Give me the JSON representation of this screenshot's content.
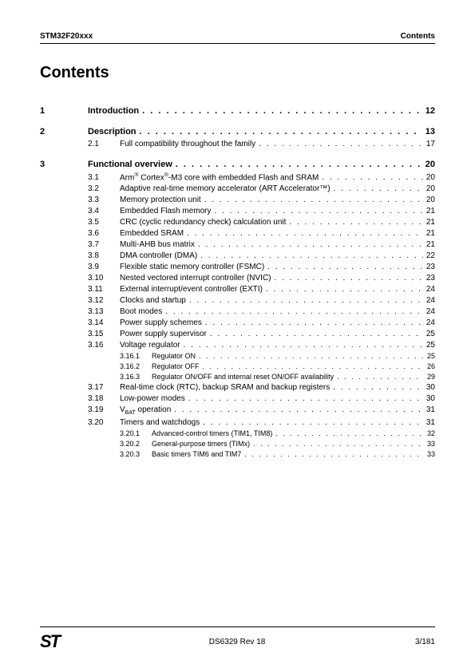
{
  "header": {
    "left": "STM32F20xxx",
    "right": "Contents"
  },
  "title": "Contents",
  "chapters": [
    {
      "num": "1",
      "title": "Introduction",
      "page": "12",
      "sections": []
    },
    {
      "num": "2",
      "title": "Description",
      "page": "13",
      "sections": [
        {
          "num": "2.1",
          "title": "Full compatibility throughout the family",
          "page": "17"
        }
      ]
    },
    {
      "num": "3",
      "title": "Functional overview",
      "page": "20",
      "sections": [
        {
          "num": "3.1",
          "title_html": "Arm<sup>®</sup> Cortex<sup>®</sup>-M3 core with embedded Flash and SRAM",
          "page": "20"
        },
        {
          "num": "3.2",
          "title": "Adaptive real-time memory accelerator (ART Accelerator™)",
          "page": "20"
        },
        {
          "num": "3.3",
          "title": "Memory protection unit",
          "page": "20"
        },
        {
          "num": "3.4",
          "title": "Embedded Flash memory",
          "page": "21"
        },
        {
          "num": "3.5",
          "title": "CRC (cyclic redundancy check) calculation unit",
          "page": "21"
        },
        {
          "num": "3.6",
          "title": "Embedded SRAM",
          "page": "21"
        },
        {
          "num": "3.7",
          "title": "Multi-AHB bus matrix",
          "page": "21"
        },
        {
          "num": "3.8",
          "title": "DMA controller (DMA)",
          "page": "22"
        },
        {
          "num": "3.9",
          "title": "Flexible static memory controller (FSMC)",
          "page": "23"
        },
        {
          "num": "3.10",
          "title": "Nested vectored interrupt controller (NVIC)",
          "page": "23"
        },
        {
          "num": "3.11",
          "title": "External interrupt/event controller (EXTI)",
          "page": "24"
        },
        {
          "num": "3.12",
          "title": "Clocks and startup",
          "page": "24"
        },
        {
          "num": "3.13",
          "title": "Boot modes",
          "page": "24"
        },
        {
          "num": "3.14",
          "title": "Power supply schemes",
          "page": "24"
        },
        {
          "num": "3.15",
          "title": "Power supply supervisor",
          "page": "25"
        },
        {
          "num": "3.16",
          "title": "Voltage regulator",
          "page": "25",
          "subs": [
            {
              "num": "3.16.1",
              "title": "Regulator ON",
              "page": "25"
            },
            {
              "num": "3.16.2",
              "title": "Regulator OFF",
              "page": "26"
            },
            {
              "num": "3.16.3",
              "title": "Regulator ON/OFF and internal reset ON/OFF availability",
              "page": "29"
            }
          ]
        },
        {
          "num": "3.17",
          "title": "Real-time clock (RTC), backup SRAM and backup registers",
          "page": "30"
        },
        {
          "num": "3.18",
          "title": "Low-power modes",
          "page": "30"
        },
        {
          "num": "3.19",
          "title_html": "V<sub>BAT</sub> operation",
          "page": "31"
        },
        {
          "num": "3.20",
          "title": "Timers and watchdogs",
          "page": "31",
          "subs": [
            {
              "num": "3.20.1",
              "title": "Advanced-control timers (TIM1, TIM8)",
              "page": "32"
            },
            {
              "num": "3.20.2",
              "title": "General-purpose timers (TIMx)",
              "page": "33"
            },
            {
              "num": "3.20.3",
              "title": "Basic timers TIM6 and TIM7",
              "page": "33"
            }
          ]
        }
      ]
    }
  ],
  "footer": {
    "logo": "ST",
    "center": "DS6329 Rev 18",
    "right": "3/181"
  }
}
